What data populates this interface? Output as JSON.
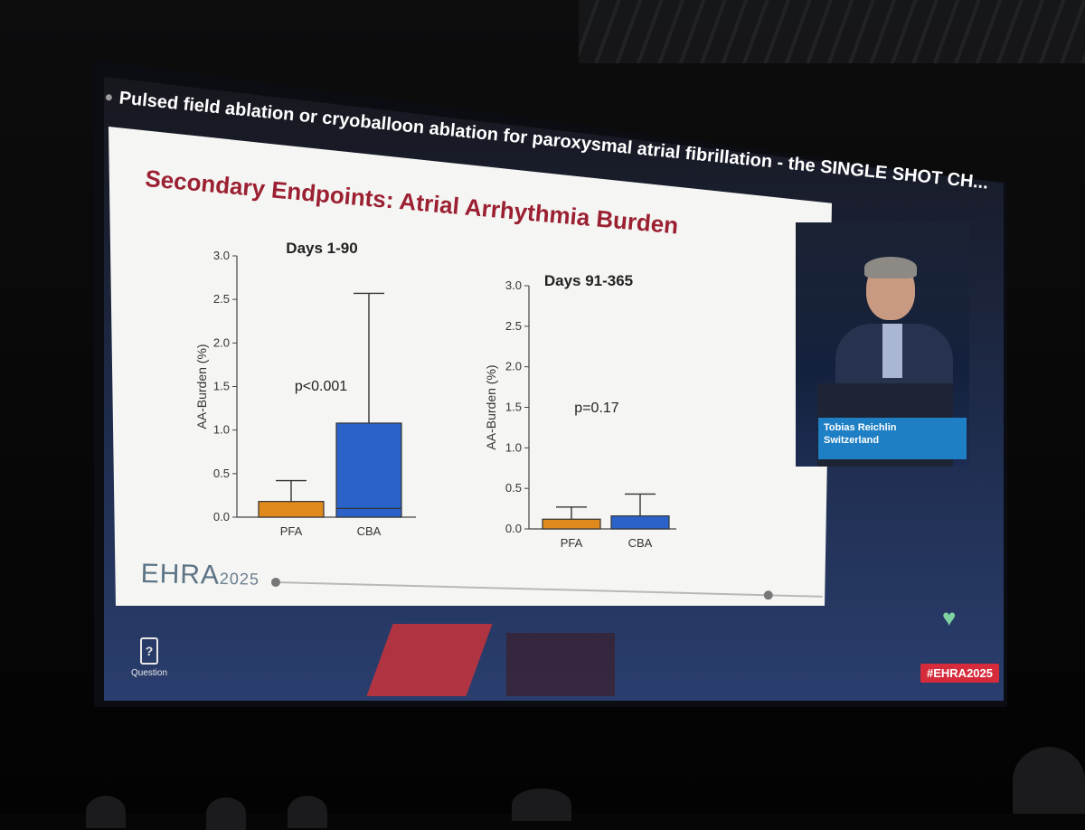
{
  "presentation": {
    "session_title": "Pulsed field ablation or cryoballoon ablation for paroxysmal atrial fibrillation - the SINGLE SHOT CH...",
    "slide_heading": "Secondary Endpoints: Atrial Arrhythmia Burden",
    "footer_brand": "EHRA",
    "footer_year": "2025",
    "speaker_name": "Tobias Reichlin",
    "speaker_country": "Switzerland",
    "question_label": "Question",
    "question_icon_glyph": "?",
    "hashtag": "#EHRA2025",
    "heart_glyph": "♥",
    "colors": {
      "pfa": "#e08a1e",
      "cba": "#2b62c9",
      "heading": "#9b2032",
      "hashtag_bg": "#d62b3b"
    }
  },
  "chart_data": [
    {
      "type": "bar",
      "title": "Days 1-90",
      "ylabel": "AA-Burden (%)",
      "ylim": [
        0,
        3.0
      ],
      "yticks": [
        "0.0",
        "0.5",
        "1.0",
        "1.5",
        "2.0",
        "2.5",
        "3.0"
      ],
      "categories": [
        "PFA",
        "CBA"
      ],
      "values": [
        0.18,
        1.08
      ],
      "median": [
        0.0,
        0.1
      ],
      "error_upper": [
        0.42,
        2.57
      ],
      "annotation": "p<0.001"
    },
    {
      "type": "bar",
      "title": "Days 91-365",
      "ylabel": "AA-Burden (%)",
      "ylim": [
        0,
        3.0
      ],
      "yticks": [
        "0.0",
        "0.5",
        "1.0",
        "1.5",
        "2.0",
        "2.5",
        "3.0"
      ],
      "categories": [
        "PFA",
        "CBA"
      ],
      "values": [
        0.12,
        0.16
      ],
      "median": [
        0.0,
        0.0
      ],
      "error_upper": [
        0.27,
        0.43
      ],
      "annotation": "p=0.17"
    }
  ]
}
